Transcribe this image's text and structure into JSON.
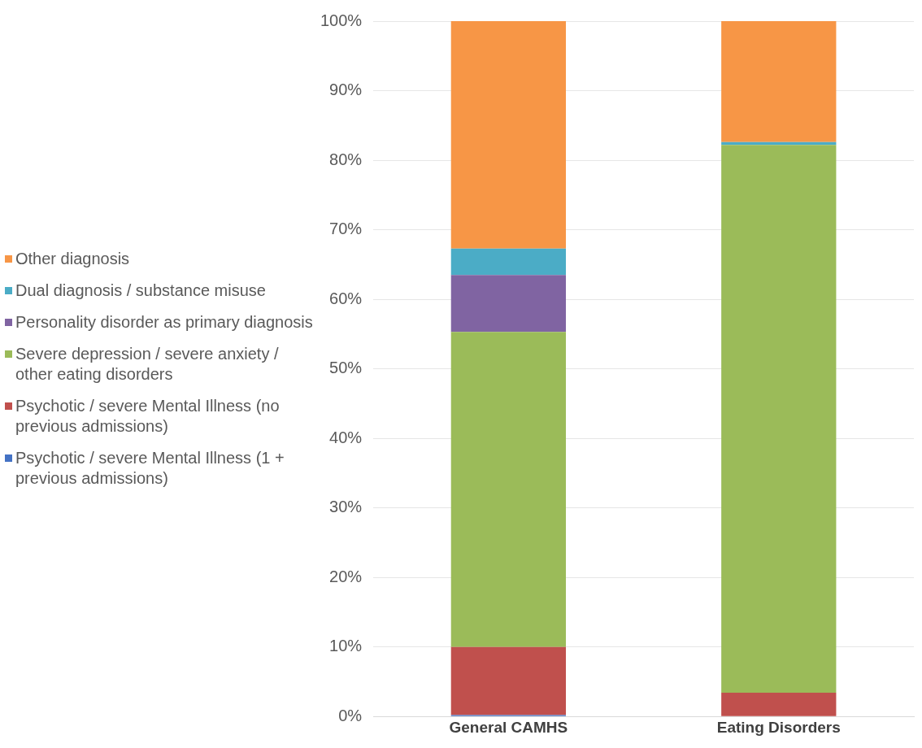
{
  "chart_data": {
    "type": "bar",
    "stacked": true,
    "categories": [
      "General CAMHS",
      "Eating Disorders"
    ],
    "series": [
      {
        "name": "Psychotic / severe Mental Illness (1 + previous admissions)",
        "color": "#4472c4",
        "values": [
          0.2,
          0
        ]
      },
      {
        "name": "Psychotic / severe Mental Illness (no previous admissions)",
        "color": "#c0504d",
        "values": [
          9.8,
          3.4
        ]
      },
      {
        "name": "Severe depression / severe anxiety / other eating disorders",
        "color": "#9bbb59",
        "values": [
          45.3,
          78.8
        ]
      },
      {
        "name": "Personality disorder as primary diagnosis",
        "color": "#8064a2",
        "values": [
          8.2,
          0
        ]
      },
      {
        "name": "Dual diagnosis / substance misuse",
        "color": "#4bacc6",
        "values": [
          3.8,
          0.4
        ]
      },
      {
        "name": "Other diagnosis",
        "color": "#f79646",
        "values": [
          32.7,
          17.4
        ]
      }
    ],
    "ylim": [
      0,
      100
    ],
    "yticks": [
      {
        "value": 0,
        "label": "0%"
      },
      {
        "value": 10,
        "label": "10%"
      },
      {
        "value": 20,
        "label": "20%"
      },
      {
        "value": 30,
        "label": "30%"
      },
      {
        "value": 40,
        "label": "40%"
      },
      {
        "value": 50,
        "label": "50%"
      },
      {
        "value": 60,
        "label": "60%"
      },
      {
        "value": 70,
        "label": "70%"
      },
      {
        "value": 80,
        "label": "80%"
      },
      {
        "value": 90,
        "label": "90%"
      },
      {
        "value": 100,
        "label": "100%"
      }
    ],
    "grid": "y",
    "legend": "left"
  }
}
